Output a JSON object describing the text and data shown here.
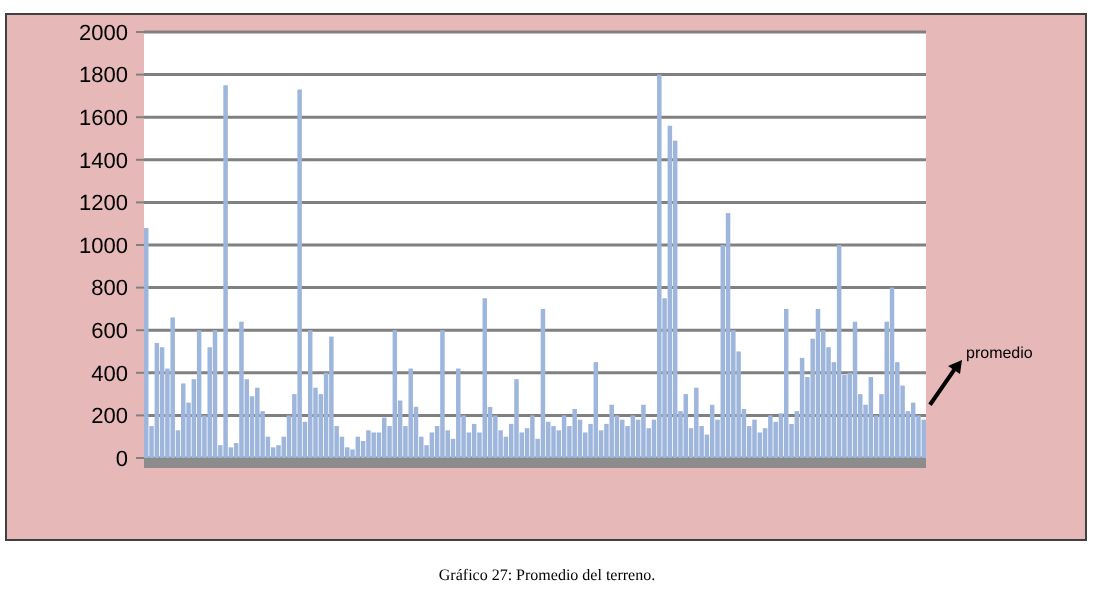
{
  "chart_data": {
    "type": "bar",
    "title": "Gráfico 27: Promedio del terreno.",
    "categories": [
      null,
      null,
      null,
      null,
      null,
      null,
      null,
      null,
      null,
      null,
      null,
      null,
      null,
      null,
      null,
      null,
      null,
      null,
      null,
      null,
      null,
      null,
      null,
      null,
      null,
      null,
      null,
      null,
      null,
      null,
      null,
      null,
      null,
      null,
      null,
      null,
      null,
      null,
      null,
      null,
      null,
      null,
      null,
      null,
      null,
      null,
      null,
      null,
      null,
      null,
      null,
      null,
      null,
      null,
      null,
      null,
      null,
      null,
      null,
      null,
      null,
      null,
      null,
      null,
      null,
      null,
      null,
      null,
      null,
      null,
      null,
      null,
      null,
      null,
      null,
      null,
      null,
      null,
      null,
      null,
      null,
      null,
      null,
      null,
      null,
      null,
      null,
      null,
      null,
      null,
      null,
      null,
      null,
      null,
      null,
      null,
      null,
      null,
      null,
      null,
      null,
      null,
      null,
      null,
      null,
      null,
      null,
      null,
      null,
      null,
      null,
      null,
      null,
      null,
      null,
      null,
      null,
      null,
      null,
      null,
      null,
      null,
      null,
      null,
      null,
      null,
      null,
      null,
      null,
      null,
      null,
      null,
      null,
      null,
      null,
      null,
      null,
      null,
      null,
      null,
      null,
      null,
      null,
      null,
      null,
      null,
      null,
      null
    ],
    "values": [
      1080,
      150,
      540,
      520,
      420,
      660,
      130,
      350,
      260,
      370,
      600,
      200,
      520,
      600,
      60,
      1750,
      50,
      70,
      640,
      370,
      290,
      330,
      220,
      100,
      50,
      60,
      100,
      200,
      300,
      1730,
      170,
      600,
      330,
      300,
      400,
      570,
      150,
      100,
      50,
      40,
      100,
      80,
      130,
      120,
      120,
      190,
      150,
      600,
      270,
      150,
      420,
      240,
      100,
      60,
      120,
      150,
      600,
      130,
      90,
      420,
      200,
      120,
      160,
      120,
      750,
      240,
      200,
      130,
      100,
      160,
      370,
      120,
      140,
      200,
      90,
      700,
      170,
      150,
      130,
      200,
      150,
      230,
      180,
      120,
      160,
      450,
      130,
      160,
      250,
      200,
      180,
      150,
      200,
      180,
      250,
      140,
      180,
      1800,
      750,
      1560,
      1490,
      220,
      300,
      140,
      330,
      150,
      110,
      250,
      180,
      1000,
      1150,
      600,
      500,
      230,
      150,
      180,
      120,
      140,
      200,
      170,
      210,
      700,
      160,
      220,
      470,
      380,
      560,
      700,
      600,
      520,
      450,
      1000,
      390,
      400,
      640,
      300,
      250,
      380,
      200,
      300,
      640,
      800,
      450,
      340,
      220,
      260,
      200,
      180
    ],
    "color": "#9fb6dc",
    "ylim": [
      0,
      2000
    ],
    "yticks": [
      0,
      200,
      400,
      600,
      800,
      1000,
      1200,
      1400,
      1600,
      1800,
      2000
    ],
    "grid": "y",
    "annotations": [
      "promedio"
    ]
  }
}
